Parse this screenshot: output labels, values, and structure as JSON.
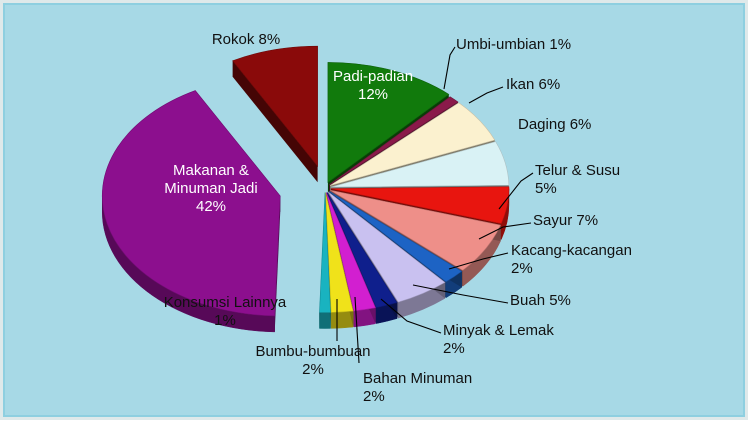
{
  "chart_data": {
    "type": "pie",
    "title": "",
    "unit": "%",
    "slices": [
      {
        "name": "Padi-padian",
        "value": 12,
        "label_line1": "Padi-padian",
        "label_line2": "12%",
        "color": "#117a0c"
      },
      {
        "name": "Umbi-umbian",
        "value": 1,
        "label_line1": "Umbi-umbian 1%",
        "label_line2": "",
        "color": "#8a1a4a"
      },
      {
        "name": "Ikan",
        "value": 6,
        "label_line1": "Ikan 6%",
        "label_line2": "",
        "color": "#fbf1cf"
      },
      {
        "name": "Daging",
        "value": 6,
        "label_line1": "Daging 6%",
        "label_line2": "",
        "color": "#d9f2f5"
      },
      {
        "name": "Telur & Susu",
        "value": 5,
        "label_line1": "Telur & Susu",
        "label_line2": "5%",
        "color": "#e8150f"
      },
      {
        "name": "Sayur",
        "value": 7,
        "label_line1": "Sayur 7%",
        "label_line2": "",
        "color": "#ee8f89"
      },
      {
        "name": "Kacang-kacangan",
        "value": 2,
        "label_line1": "Kacang-kacangan",
        "label_line2": "2%",
        "color": "#1d63c4"
      },
      {
        "name": "Buah",
        "value": 5,
        "label_line1": "Buah 5%",
        "label_line2": "",
        "color": "#c9c1f0"
      },
      {
        "name": "Minyak & Lemak",
        "value": 2,
        "label_line1": "Minyak & Lemak",
        "label_line2": "2%",
        "color": "#0f1f8c"
      },
      {
        "name": "Bahan Minuman",
        "value": 2,
        "label_line1": "Bahan Minuman",
        "label_line2": "2%",
        "color": "#d21fd0"
      },
      {
        "name": "Bumbu-bumbuan",
        "value": 2,
        "label_line1": "Bumbu-bumbuan",
        "label_line2": "2%",
        "color": "#f0e21a"
      },
      {
        "name": "Konsumsi Lainnya",
        "value": 1,
        "label_line1": "Konsumsi Lainnya",
        "label_line2": "1%",
        "color": "#19b3c0"
      },
      {
        "name": "Makanan & Minuman Jadi",
        "value": 42,
        "label_line1": "Makanan &",
        "label_line2": "Minuman Jadi",
        "label_line3": "42%",
        "color": "#8c0f8e"
      },
      {
        "name": "Rokok",
        "value": 8,
        "label_line1": "Rokok 8%",
        "label_line2": "",
        "color": "#8a0a0a"
      }
    ]
  }
}
